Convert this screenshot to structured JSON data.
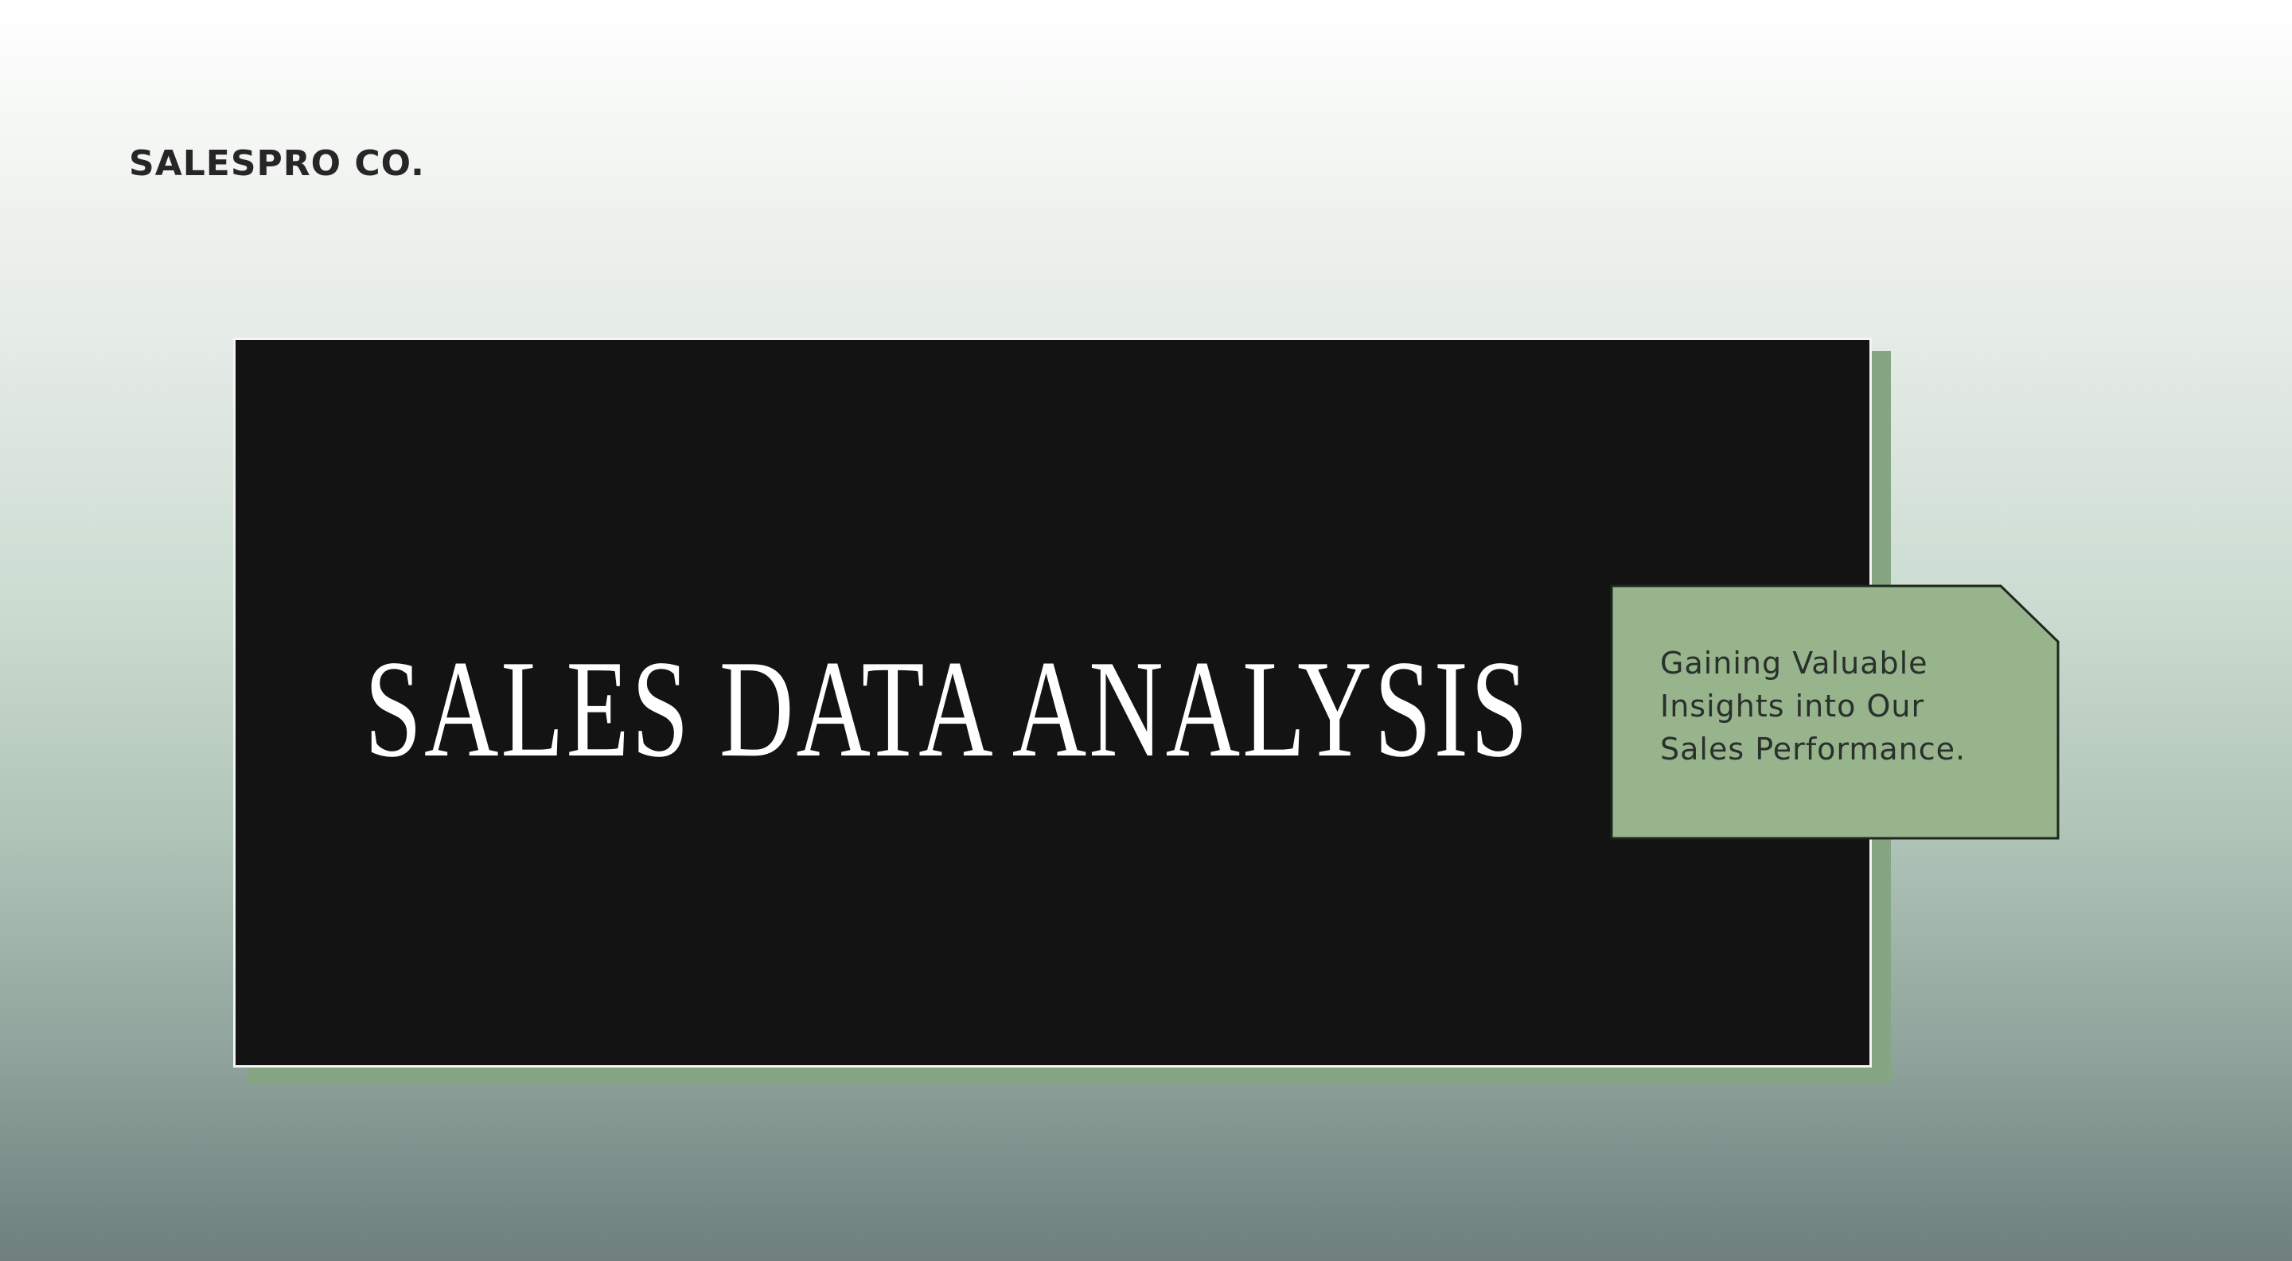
{
  "header": {
    "brand": "SALESPRO CO."
  },
  "slide": {
    "title": "SALES DATA ANALYSIS",
    "subtitle_lines": [
      "Gaining Valuable",
      "Insights into Our",
      "Sales Performance."
    ]
  },
  "colors": {
    "panel": "#131313",
    "accent_green": "#97b48d",
    "shadow_green": "#86a683",
    "text_dark": "#262626"
  }
}
